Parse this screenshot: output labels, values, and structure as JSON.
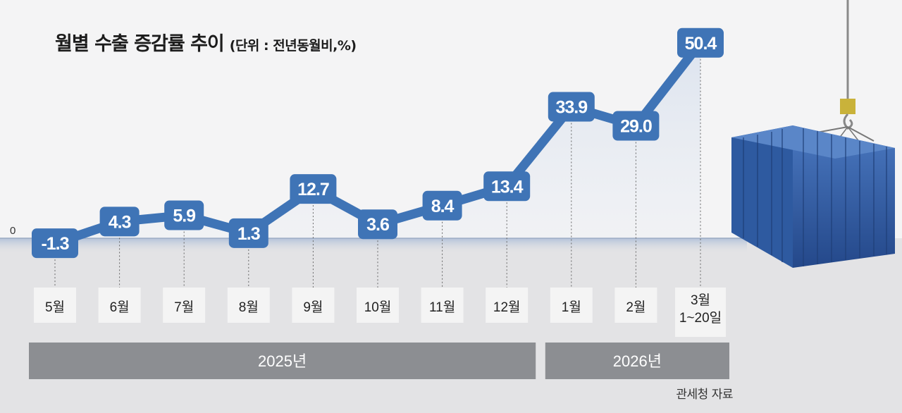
{
  "title": "월별 수출 증감률 추이",
  "unit": "(단위 : 전년동월비,%)",
  "source": "관세청 자료",
  "zero_label": "0",
  "colors": {
    "line": "#3f74b6",
    "label_bg": "#3f74b6",
    "label_text": "#ffffff",
    "year_bar": "#8c8e92",
    "year_text": "#ffffff",
    "month_box": "#f4f4f4",
    "bottom_bg": "#e3e3e5",
    "top_bg": "#f4f4f5"
  },
  "chart_data": {
    "type": "line",
    "categories": [
      "5월",
      "6월",
      "7월",
      "8월",
      "9월",
      "10월",
      "11월",
      "12월",
      "1월",
      "2월",
      "3월\n1~20일"
    ],
    "values": [
      -1.3,
      4.3,
      5.9,
      1.3,
      12.7,
      3.6,
      8.4,
      13.4,
      33.9,
      29.0,
      50.4
    ],
    "value_labels": [
      "-1.3",
      "4.3",
      "5.9",
      "1.3",
      "12.7",
      "3.6",
      "8.4",
      "13.4",
      "33.9",
      "29.0",
      "50.4"
    ],
    "year_groups": [
      {
        "label": "2025년",
        "from": 0,
        "to": 7
      },
      {
        "label": "2026년",
        "from": 8,
        "to": 10
      }
    ],
    "xlabel": "",
    "ylabel": "",
    "grid": false
  }
}
